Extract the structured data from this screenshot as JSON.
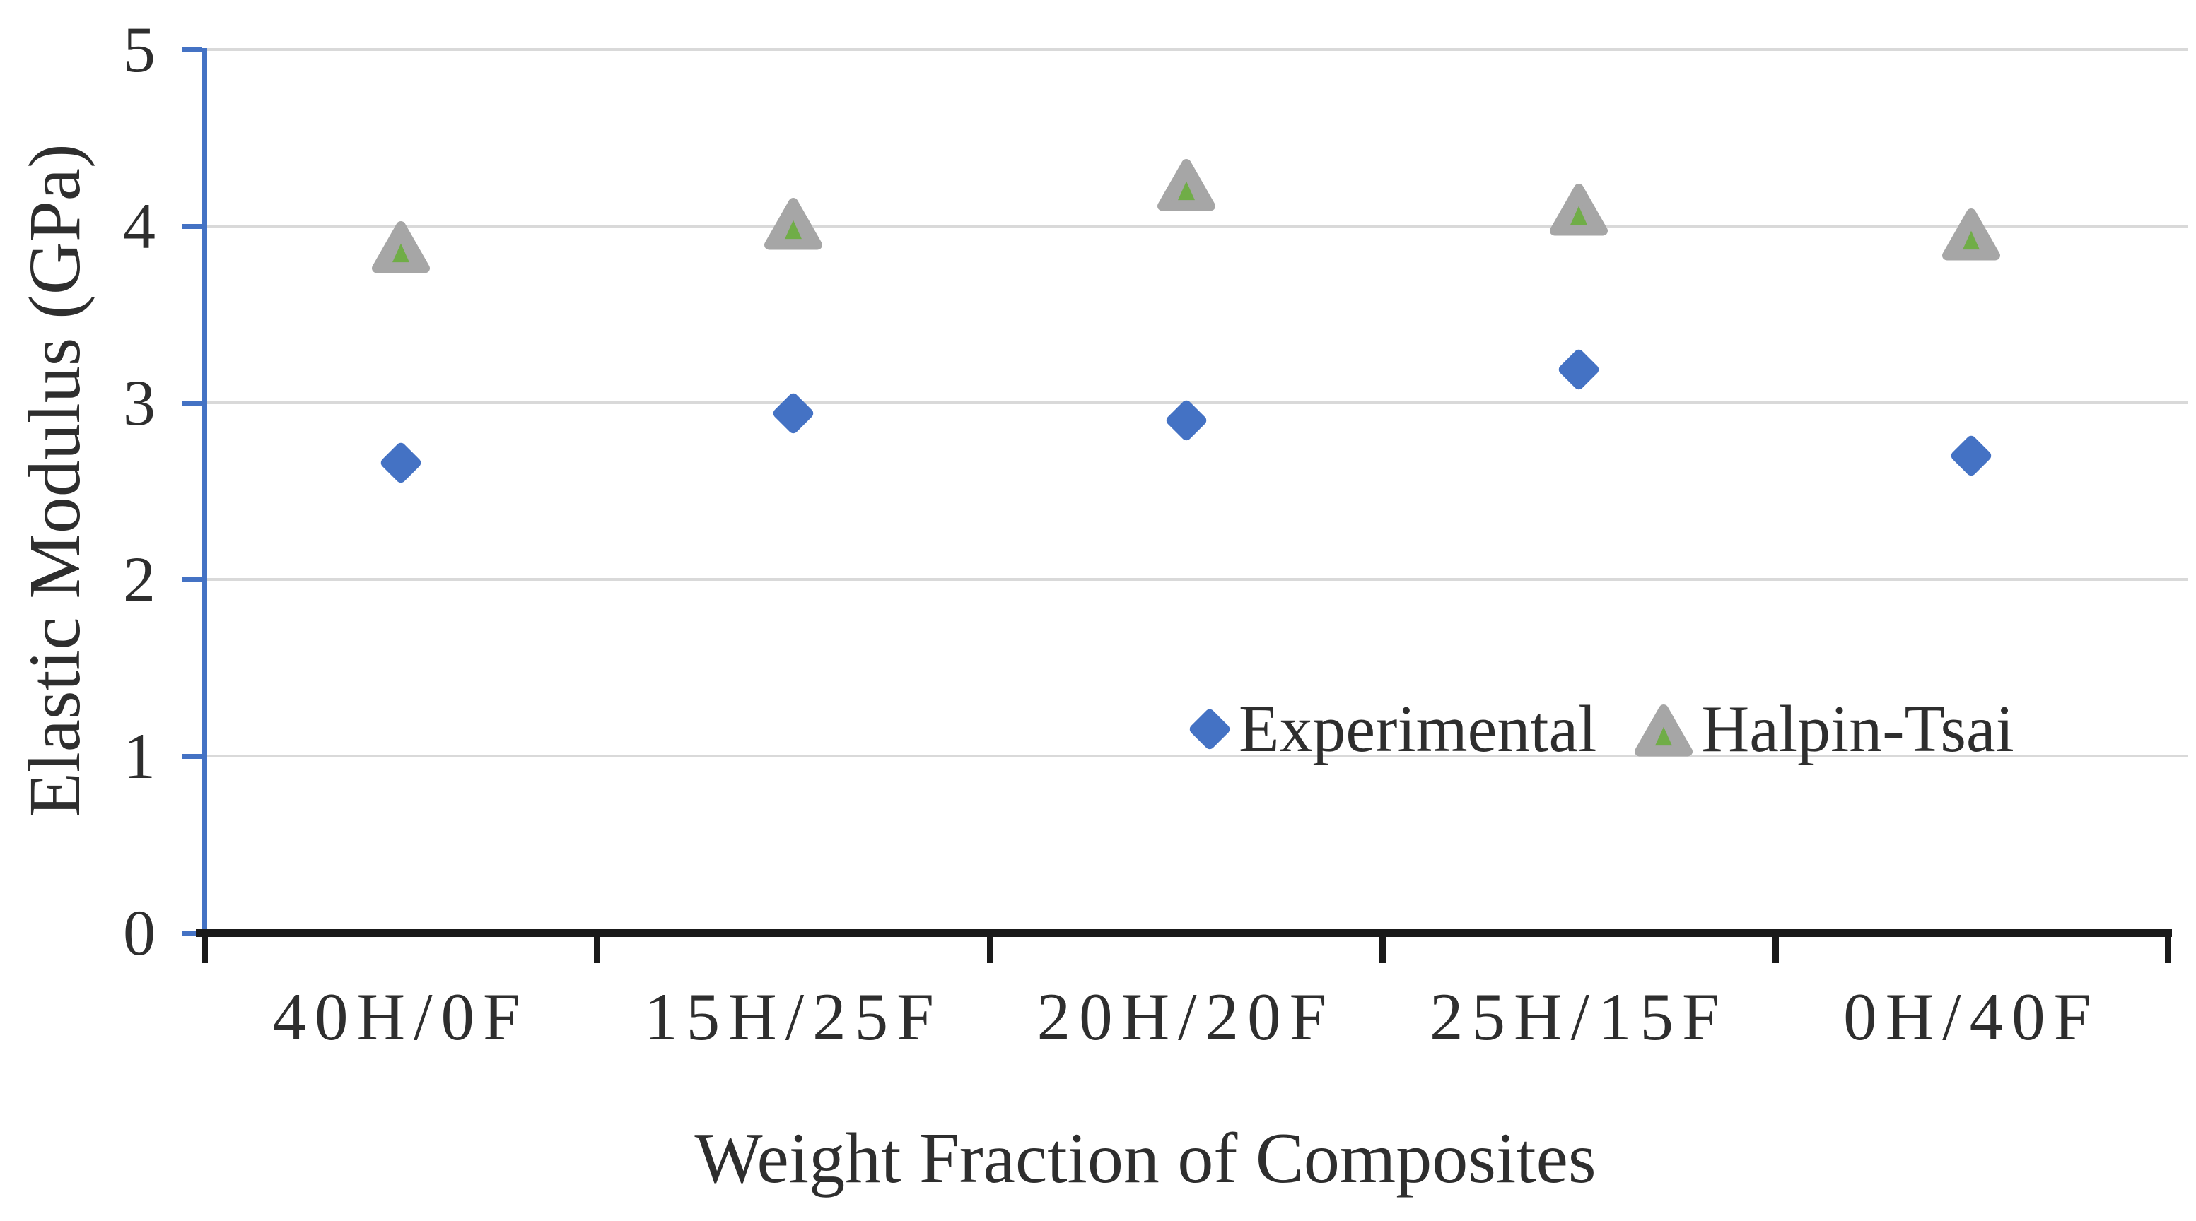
{
  "chart_data": {
    "type": "scatter",
    "title": "",
    "xlabel": "Weight Fraction of Composites",
    "ylabel": "Elastic Modulus (GPa)",
    "categories": [
      "40H/0F",
      "15H/25F",
      "20H/20F",
      "25H/15F",
      "0H/40F"
    ],
    "series": [
      {
        "name": "Experimental",
        "marker": "diamond",
        "color": "#4472C4",
        "values": [
          2.66,
          2.94,
          2.9,
          3.19,
          2.7
        ]
      },
      {
        "name": "Halpin-Tsai",
        "marker": "triangle",
        "color": "#A6A6A6",
        "inner_color": "#70AD47",
        "values": [
          3.89,
          4.02,
          4.24,
          4.1,
          3.96
        ]
      }
    ],
    "ylim": [
      0,
      5
    ],
    "yticks": [
      0,
      1,
      2,
      3,
      4,
      5
    ],
    "grid": "horizontal-gridlines",
    "legend_position": "inside-plot-right-middle",
    "colors": {
      "y_axis": "#4472C4",
      "x_axis": "#1A1A1A",
      "gridline": "#D9D9D9",
      "text": "#2E2E2E"
    }
  }
}
